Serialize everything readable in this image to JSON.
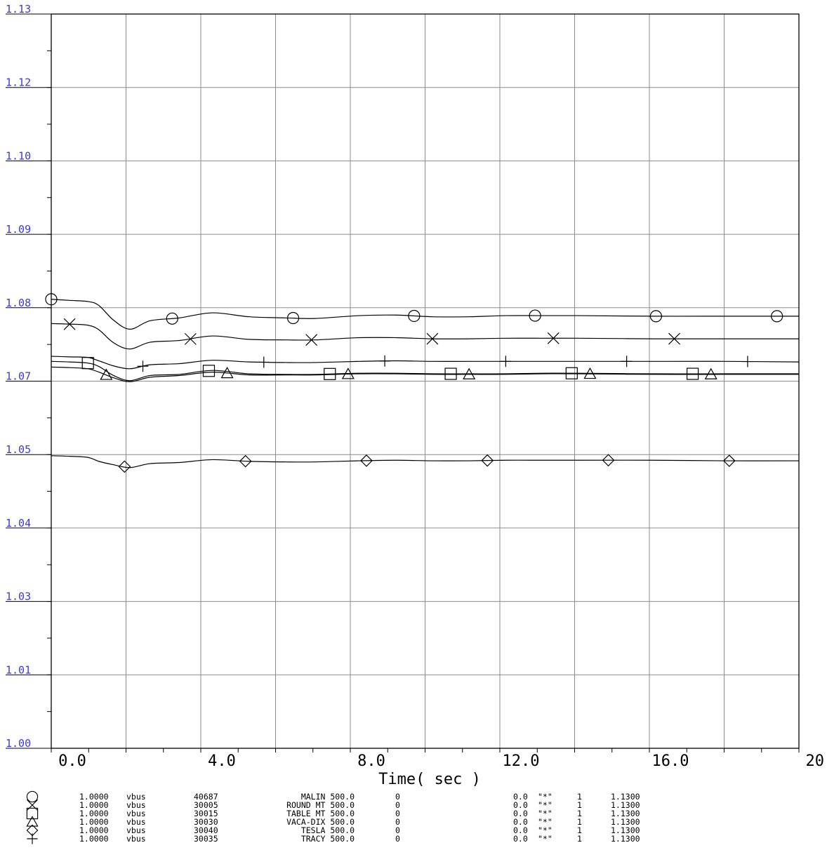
{
  "chart_data": {
    "type": "line",
    "xlabel": "Time( sec )",
    "xlim": [
      -0.4,
      20.0
    ],
    "ylim": [
      1.0,
      1.13
    ],
    "xticks": [
      "0.0",
      "4.0",
      "8.0",
      "12.0",
      "16.0",
      "20.0"
    ],
    "yticks": [
      "1.00",
      "1.01",
      "1.03",
      "1.04",
      "1.05",
      "1.07",
      "1.08",
      "1.09",
      "1.10",
      "1.12",
      "1.13"
    ],
    "grid": true,
    "series": [
      {
        "marker": "circle",
        "x": [
          -0.4,
          0.1,
          0.6,
          0.9,
          1.3,
          1.75,
          2.3,
          3.1,
          4.0,
          5.0,
          6.0,
          6.8,
          8.0,
          9.0,
          10.0,
          11.0,
          12.0,
          13.0,
          14.0,
          16.0,
          18.0,
          20.0
        ],
        "y": [
          1.0795,
          1.0793,
          1.0791,
          1.0784,
          1.0758,
          1.0742,
          1.0757,
          1.0762,
          1.0771,
          1.0764,
          1.0762,
          1.0761,
          1.0766,
          1.0767,
          1.0764,
          1.0764,
          1.0766,
          1.0766,
          1.0766,
          1.0765,
          1.0765,
          1.0765
        ],
        "legend": {
          "scale": "1.0000",
          "var": "vbus",
          "bus": "40687",
          "name": "MALIN 500.0",
          "zero": "0",
          "min": "0.0",
          "ident": "\"*\"",
          "one": "1",
          "max": "1.1300"
        }
      },
      {
        "marker": "x",
        "x": [
          -0.4,
          0.1,
          0.6,
          0.9,
          1.3,
          1.75,
          2.3,
          3.1,
          4.0,
          5.0,
          6.0,
          6.8,
          8.0,
          9.0,
          10.0,
          11.0,
          12.0,
          13.0,
          14.0,
          16.0,
          18.0,
          20.0
        ],
        "y": [
          1.0752,
          1.0751,
          1.0749,
          1.0741,
          1.0718,
          1.0707,
          1.0719,
          1.0722,
          1.073,
          1.0724,
          1.0723,
          1.0723,
          1.0727,
          1.0727,
          1.0725,
          1.0725,
          1.0726,
          1.0726,
          1.0726,
          1.0725,
          1.0725,
          1.0725
        ],
        "legend": {
          "scale": "1.0000",
          "var": "vbus",
          "bus": "30005",
          "name": "ROUND MT 500.0",
          "zero": "0",
          "min": "0.0",
          "ident": "\"*\"",
          "one": "1",
          "max": "1.1300"
        }
      },
      {
        "marker": "square",
        "x": [
          -0.4,
          0.1,
          0.6,
          0.9,
          1.3,
          1.75,
          2.3,
          3.1,
          4.0,
          5.0,
          6.0,
          6.8,
          8.0,
          9.0,
          10.0,
          11.0,
          12.0,
          13.0,
          14.0,
          16.0,
          18.0,
          20.0
        ],
        "y": [
          1.0685,
          1.0684,
          1.0682,
          1.0676,
          1.066,
          1.0651,
          1.066,
          1.0662,
          1.0669,
          1.0663,
          1.0662,
          1.0662,
          1.0664,
          1.0664,
          1.0663,
          1.0663,
          1.0663,
          1.0664,
          1.0664,
          1.0663,
          1.0663,
          1.0663
        ],
        "legend": {
          "scale": "1.0000",
          "var": "vbus",
          "bus": "30015",
          "name": "TABLE MT 500.0",
          "zero": "0",
          "min": "0.0",
          "ident": "\"*\"",
          "one": "1",
          "max": "1.1300"
        }
      },
      {
        "marker": "triangle",
        "x": [
          -0.4,
          0.1,
          0.6,
          0.9,
          1.3,
          1.75,
          2.3,
          3.1,
          4.0,
          5.0,
          6.0,
          6.8,
          8.0,
          9.0,
          10.0,
          11.0,
          12.0,
          13.0,
          14.0,
          16.0,
          18.0,
          20.0
        ],
        "y": [
          1.0675,
          1.0674,
          1.0672,
          1.0666,
          1.0656,
          1.0649,
          1.0657,
          1.066,
          1.0666,
          1.0661,
          1.0661,
          1.0661,
          1.0663,
          1.0663,
          1.0662,
          1.0662,
          1.0662,
          1.0663,
          1.0663,
          1.0662,
          1.0662,
          1.0662
        ],
        "legend": {
          "scale": "1.0000",
          "var": "vbus",
          "bus": "30030",
          "name": "VACA-DIX 500.0",
          "zero": "0",
          "min": "0.0",
          "ident": "\"*\"",
          "one": "1",
          "max": "1.1300"
        }
      },
      {
        "marker": "diamond",
        "x": [
          -0.4,
          0.1,
          0.6,
          0.9,
          1.3,
          1.75,
          2.3,
          3.1,
          4.0,
          5.0,
          6.0,
          6.8,
          8.0,
          9.0,
          10.0,
          11.0,
          12.0,
          13.0,
          14.0,
          16.0,
          18.0,
          20.0
        ],
        "y": [
          1.0518,
          1.0517,
          1.0515,
          1.0508,
          1.0502,
          1.0497,
          1.0504,
          1.0506,
          1.0511,
          1.0508,
          1.0507,
          1.0507,
          1.0509,
          1.051,
          1.0509,
          1.0509,
          1.051,
          1.051,
          1.051,
          1.051,
          1.0509,
          1.0509
        ],
        "legend": {
          "scale": "1.0000",
          "var": "vbus",
          "bus": "30040",
          "name": "TESLA 500.0",
          "zero": "0",
          "min": "0.0",
          "ident": "\"*\"",
          "one": "1",
          "max": "1.1300"
        }
      },
      {
        "marker": "plus",
        "x": [
          -0.4,
          0.1,
          0.6,
          0.9,
          1.3,
          1.75,
          2.3,
          3.1,
          4.0,
          5.0,
          6.0,
          6.8,
          8.0,
          9.0,
          10.0,
          11.0,
          12.0,
          13.0,
          14.0,
          16.0,
          18.0,
          20.0
        ],
        "y": [
          1.0694,
          1.0693,
          1.0692,
          1.0686,
          1.0677,
          1.0672,
          1.0679,
          1.0681,
          1.0687,
          1.0684,
          1.0683,
          1.0683,
          1.0685,
          1.0686,
          1.0685,
          1.0685,
          1.0685,
          1.0685,
          1.0685,
          1.0685,
          1.0685,
          1.0684
        ],
        "legend": {
          "scale": "1.0000",
          "var": "vbus",
          "bus": "30035",
          "name": "TRACY 500.0",
          "zero": "0",
          "min": "0.0",
          "ident": "\"*\"",
          "one": "1",
          "max": "1.1300"
        }
      }
    ],
    "marker_positions": {
      "circle": [
        -0.4,
        2.9,
        6.2,
        9.5,
        12.8,
        16.1,
        19.4
      ],
      "x": [
        0.1,
        3.4,
        6.7,
        10.0,
        13.3,
        16.6
      ],
      "square": [
        0.6,
        3.9,
        7.2,
        10.5,
        13.8,
        17.1
      ],
      "triangle": [
        1.1,
        4.4,
        7.7,
        11.0,
        14.3,
        17.6
      ],
      "diamond": [
        1.6,
        4.9,
        8.2,
        11.5,
        14.8,
        18.1
      ],
      "plus": [
        2.1,
        5.4,
        8.7,
        12.0,
        15.3,
        18.6
      ]
    }
  }
}
